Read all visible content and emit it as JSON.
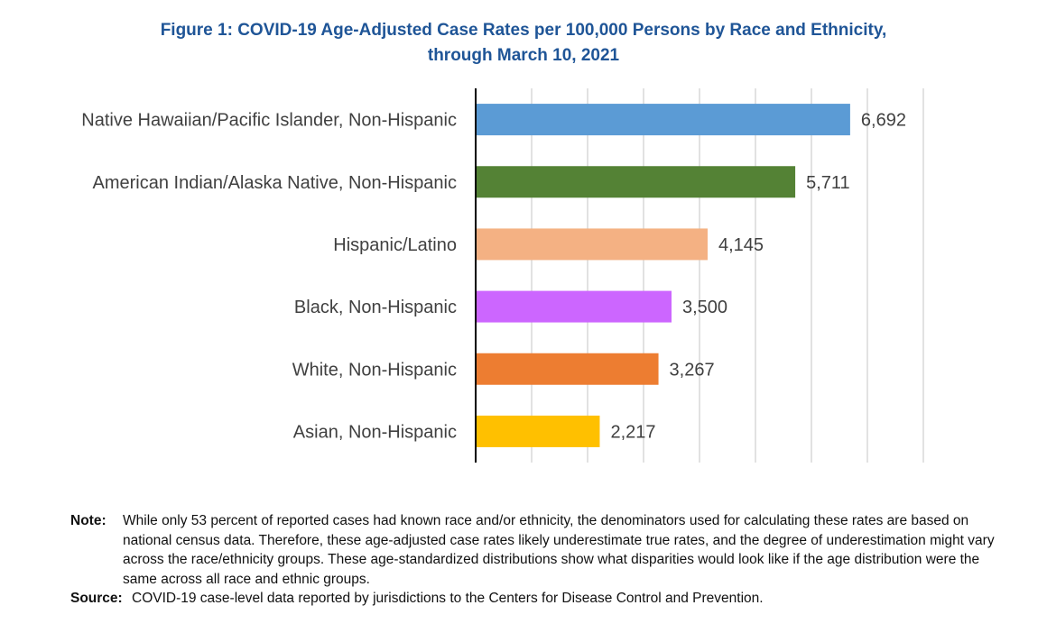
{
  "chart_data": {
    "type": "bar",
    "orientation": "horizontal",
    "title": "Figure 1: COVID-19 Age-Adjusted Case Rates per 100,000 Persons by Race and Ethnicity,",
    "subtitle": "through March 10, 2021",
    "xlabel": "",
    "ylabel": "",
    "xlim": [
      0,
      8000
    ],
    "grid_step": 1000,
    "grid": true,
    "legend": "none",
    "categories": [
      "Native Hawaiian/Pacific Islander, Non-Hispanic",
      "American Indian/Alaska Native, Non-Hispanic",
      "Hispanic/Latino",
      "Black, Non-Hispanic",
      "White, Non-Hispanic",
      "Asian, Non-Hispanic"
    ],
    "values": [
      6692,
      5711,
      4145,
      3500,
      3267,
      2217
    ],
    "value_labels": [
      "6,692",
      "5,711",
      "4,145",
      "3,500",
      "3,267",
      "2,217"
    ],
    "colors": [
      "#5b9bd5",
      "#548235",
      "#f4b183",
      "#cc66ff",
      "#ed7d31",
      "#ffc000"
    ]
  },
  "notes": {
    "note_label": "Note:",
    "note_text": "While only 53 percent of reported cases had known race and/or ethnicity, the denominators used for calculating these rates are based on national census data.  Therefore, these age-adjusted case rates likely underestimate true rates, and the degree of underestimation might vary across the race/ethnicity groups. These age-standardized distributions show what disparities would look like if the age distribution were the same across all race and ethnic groups.",
    "source_label": "Source:",
    "source_text": "COVID-19 case-level data reported by jurisdictions to the Centers for Disease Control and Prevention."
  }
}
